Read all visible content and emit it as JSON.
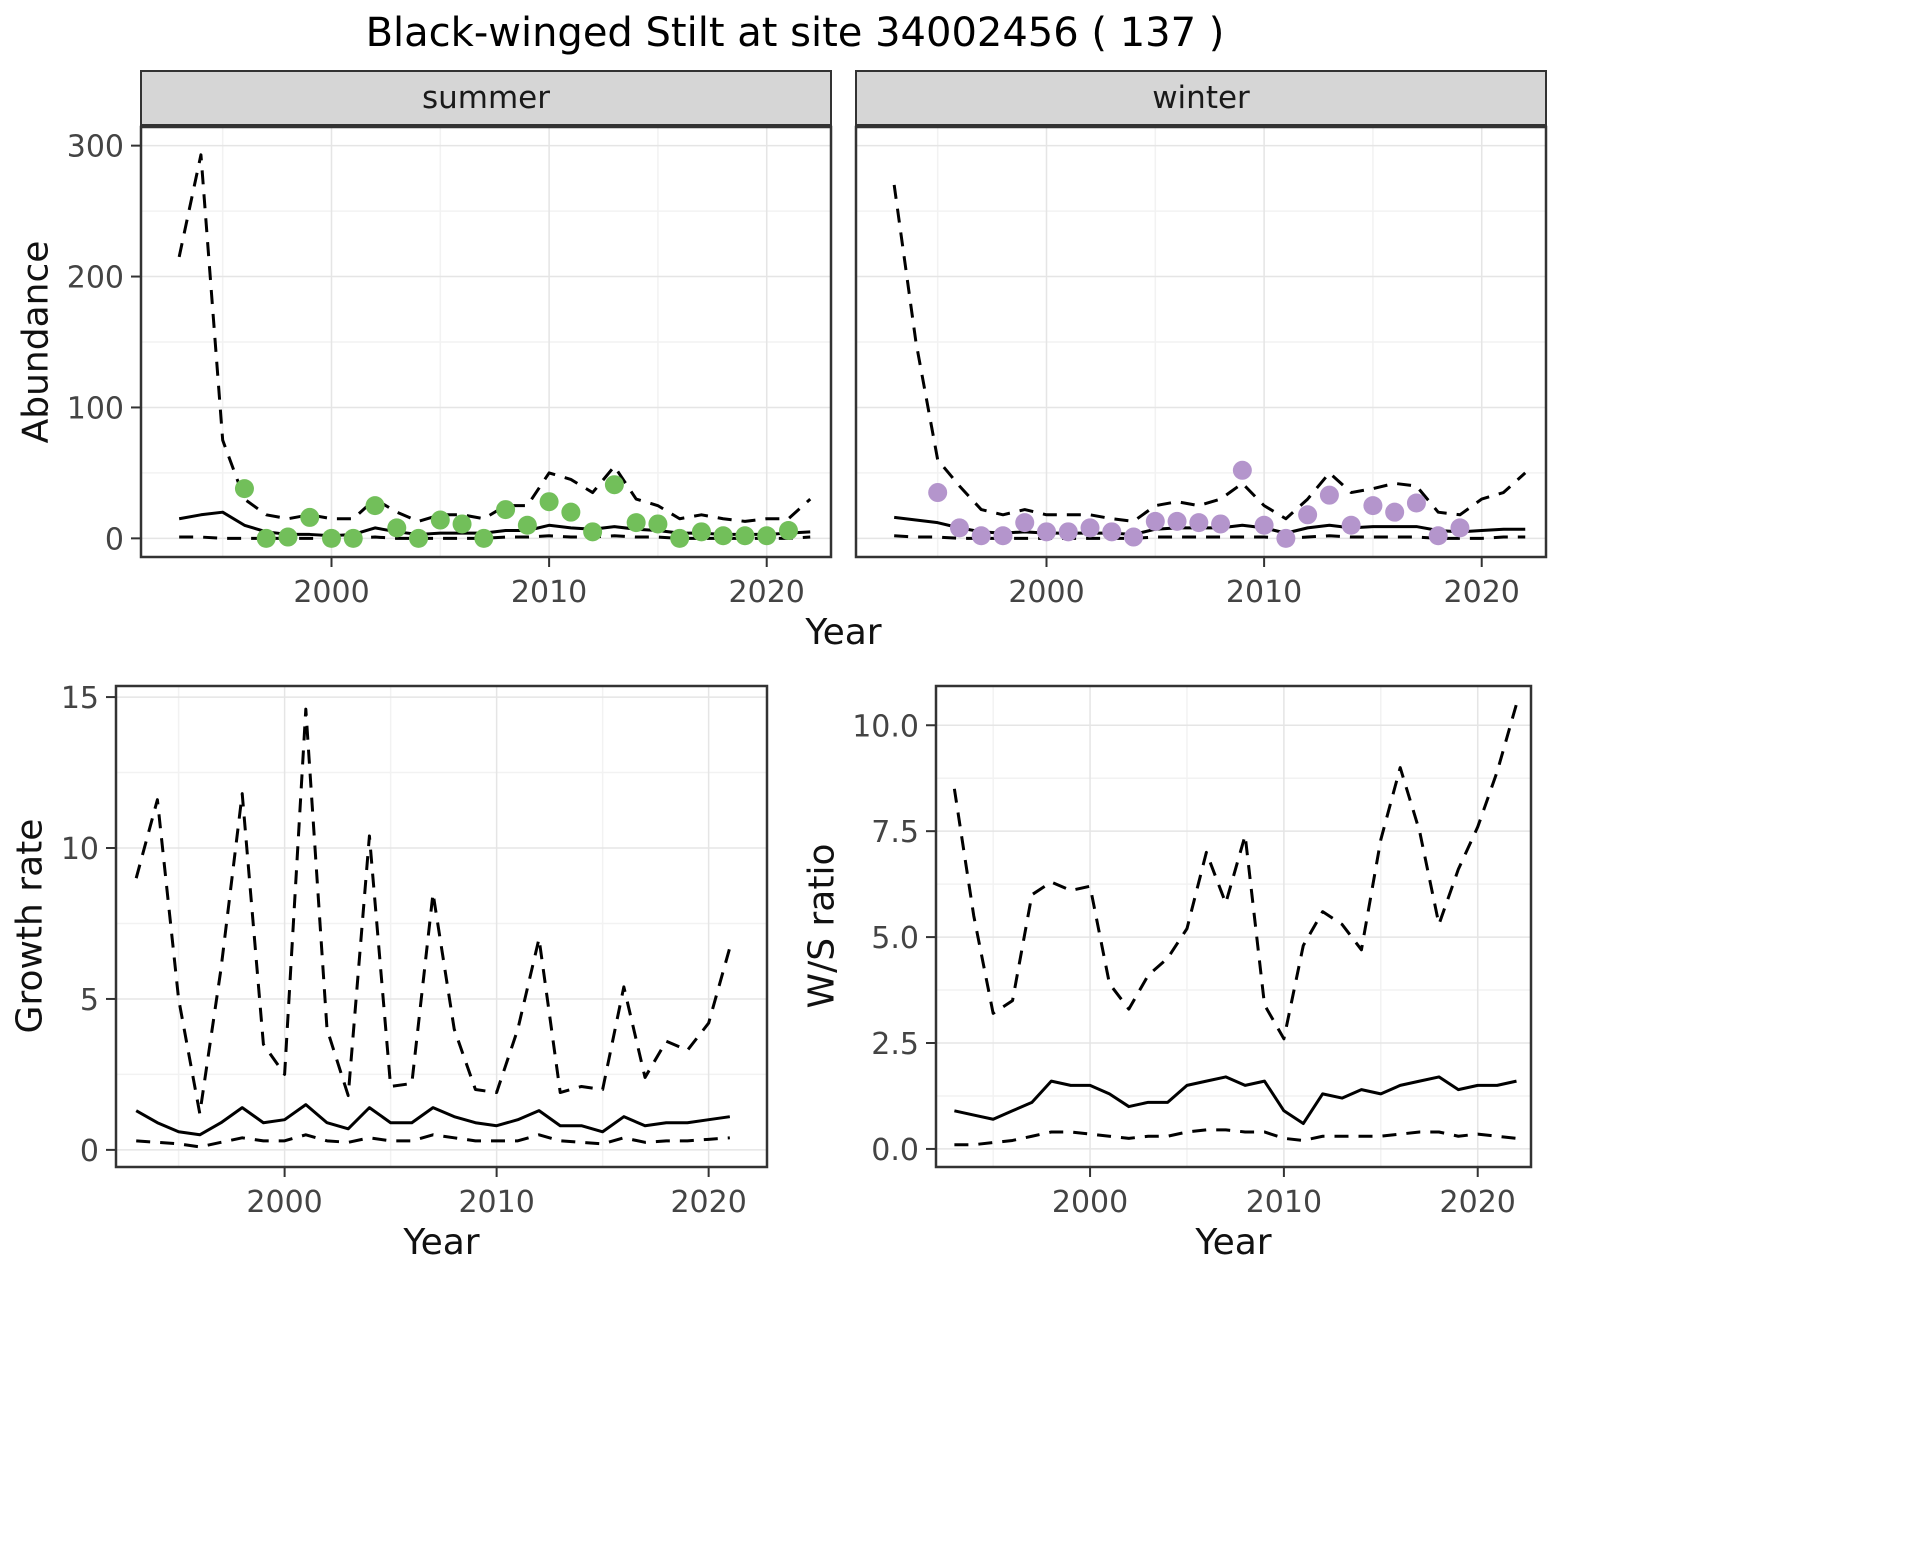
{
  "title": "Black-winged Stilt at site 34002456 ( 137 )",
  "facets": {
    "summer": "summer",
    "winter": "winter"
  },
  "axes": {
    "abundance_ylabel": "Abundance",
    "abundance_xlabel": "Year",
    "growth_ylabel": "Growth rate",
    "growth_xlabel": "Year",
    "ws_ylabel": "W/S ratio",
    "ws_xlabel": "Year"
  },
  "colors": {
    "fit_line": "#000000",
    "ci_line": "#000000",
    "summer_points": "#72bf5a",
    "winter_points": "#b495cc",
    "strip_bg": "#d6d6d6",
    "grid_major": "#e5e5e5",
    "grid_minor": "#f2f2f2",
    "panel_border": "#333333",
    "tick_text": "#444444"
  },
  "chart_data": [
    {
      "id": "summer_abundance",
      "type": "line",
      "facet": "summer",
      "xlabel": "Year",
      "ylabel": "Abundance",
      "xlim": [
        1991.2,
        2023
      ],
      "ylim": [
        -15,
        315
      ],
      "xticks": [
        2000,
        2010,
        2020
      ],
      "xticklabels": [
        "2000",
        "2010",
        "2020"
      ],
      "yticks": [
        0,
        100,
        200,
        300
      ],
      "yticklabels": [
        "0",
        "100",
        "200",
        "300"
      ],
      "show_y_labels": true,
      "grid": true,
      "legend": "none",
      "x": [
        1993,
        1994,
        1995,
        1996,
        1997,
        1998,
        1999,
        2000,
        2001,
        2002,
        2003,
        2004,
        2005,
        2006,
        2007,
        2008,
        2009,
        2010,
        2011,
        2012,
        2013,
        2014,
        2015,
        2016,
        2017,
        2018,
        2019,
        2020,
        2021,
        2022
      ],
      "series": [
        {
          "name": "upper_ci",
          "style": "dashed",
          "values": [
            215,
            293,
            75,
            30,
            18,
            15,
            18,
            15,
            15,
            30,
            20,
            13,
            18,
            18,
            15,
            25,
            25,
            50,
            45,
            35,
            55,
            30,
            25,
            15,
            18,
            15,
            13,
            15,
            15,
            30
          ]
        },
        {
          "name": "fit",
          "style": "solid",
          "values": [
            15,
            18,
            20,
            10,
            5,
            3,
            3,
            2,
            3,
            8,
            5,
            3,
            4,
            4,
            4,
            6,
            6,
            10,
            8,
            7,
            9,
            7,
            6,
            4,
            4,
            3,
            3,
            3,
            4,
            5
          ]
        },
        {
          "name": "lower_ci",
          "style": "dashed",
          "values": [
            1,
            1,
            0,
            0,
            0,
            0,
            0,
            0,
            0,
            1,
            0,
            0,
            0,
            0,
            0,
            1,
            1,
            2,
            1,
            1,
            2,
            1,
            1,
            0,
            0,
            0,
            0,
            0,
            0,
            1
          ]
        }
      ],
      "points": {
        "name": "observed_counts",
        "color_key": "summer_points",
        "x": [
          1996,
          1997,
          1998,
          1999,
          2000,
          2001,
          2002,
          2003,
          2004,
          2005,
          2006,
          2007,
          2008,
          2009,
          2010,
          2011,
          2012,
          2013,
          2014,
          2015,
          2016,
          2017,
          2018,
          2019,
          2020,
          2021
        ],
        "y": [
          38,
          0,
          1,
          16,
          0,
          0,
          25,
          8,
          0,
          14,
          11,
          0,
          22,
          10,
          28,
          20,
          5,
          41,
          12,
          11,
          0,
          5,
          2,
          2,
          2,
          6
        ]
      }
    },
    {
      "id": "winter_abundance",
      "type": "line",
      "facet": "winter",
      "xlabel": "Year",
      "ylabel": "Abundance",
      "xlim": [
        1991.2,
        2023
      ],
      "ylim": [
        -15,
        315
      ],
      "xticks": [
        2000,
        2010,
        2020
      ],
      "xticklabels": [
        "2000",
        "2010",
        "2020"
      ],
      "yticks": [
        0,
        100,
        200,
        300
      ],
      "yticklabels": [
        "0",
        "100",
        "200",
        "300"
      ],
      "show_y_labels": false,
      "grid": true,
      "legend": "none",
      "x": [
        1993,
        1994,
        1995,
        1996,
        1997,
        1998,
        1999,
        2000,
        2001,
        2002,
        2003,
        2004,
        2005,
        2006,
        2007,
        2008,
        2009,
        2010,
        2011,
        2012,
        2013,
        2014,
        2015,
        2016,
        2017,
        2018,
        2019,
        2020,
        2021,
        2022
      ],
      "series": [
        {
          "name": "upper_ci",
          "style": "dashed",
          "values": [
            270,
            150,
            60,
            40,
            22,
            18,
            22,
            18,
            18,
            18,
            15,
            13,
            25,
            28,
            25,
            30,
            42,
            25,
            15,
            30,
            50,
            35,
            38,
            42,
            40,
            20,
            18,
            30,
            35,
            50
          ]
        },
        {
          "name": "fit",
          "style": "solid",
          "values": [
            16,
            14,
            12,
            8,
            5,
            4,
            5,
            4,
            4,
            4,
            4,
            3,
            7,
            8,
            8,
            8,
            10,
            8,
            4,
            8,
            10,
            8,
            9,
            9,
            9,
            6,
            5,
            6,
            7,
            7
          ]
        },
        {
          "name": "lower_ci",
          "style": "dashed",
          "values": [
            2,
            1,
            1,
            0,
            0,
            0,
            0,
            0,
            0,
            0,
            0,
            0,
            1,
            1,
            1,
            1,
            1,
            1,
            0,
            1,
            2,
            1,
            1,
            1,
            1,
            0,
            0,
            0,
            1,
            1
          ]
        }
      ],
      "points": {
        "name": "observed_counts",
        "color_key": "winter_points",
        "x": [
          1995,
          1996,
          1997,
          1998,
          1999,
          2000,
          2001,
          2002,
          2003,
          2004,
          2005,
          2006,
          2007,
          2008,
          2009,
          2010,
          2011,
          2012,
          2013,
          2014,
          2015,
          2016,
          2017,
          2018,
          2019
        ],
        "y": [
          35,
          8,
          2,
          2,
          12,
          5,
          5,
          8,
          5,
          1,
          13,
          13,
          12,
          11,
          52,
          10,
          0,
          18,
          33,
          10,
          25,
          20,
          27,
          2,
          8
        ]
      }
    },
    {
      "id": "growth_rate",
      "type": "line",
      "xlabel": "Year",
      "ylabel": "Growth rate",
      "xlim": [
        1992,
        2022.8
      ],
      "ylim": [
        -0.6,
        15.4
      ],
      "xticks": [
        2000,
        2010,
        2020
      ],
      "xticklabels": [
        "2000",
        "2010",
        "2020"
      ],
      "yticks": [
        0,
        5,
        10,
        15
      ],
      "yticklabels": [
        "0",
        "5",
        "10",
        "15"
      ],
      "show_y_labels": true,
      "grid": true,
      "legend": "none",
      "x": [
        1993,
        1994,
        1995,
        1996,
        1997,
        1998,
        1999,
        2000,
        2001,
        2002,
        2003,
        2004,
        2005,
        2006,
        2007,
        2008,
        2009,
        2010,
        2011,
        2012,
        2013,
        2014,
        2015,
        2016,
        2017,
        2018,
        2019,
        2020,
        2021
      ],
      "series": [
        {
          "name": "upper_ci",
          "style": "dashed",
          "values": [
            9.0,
            11.6,
            5.0,
            1.2,
            6.0,
            11.8,
            3.5,
            2.5,
            14.6,
            4.0,
            1.8,
            10.4,
            2.1,
            2.2,
            8.5,
            4.0,
            2.0,
            1.9,
            4.0,
            7.0,
            1.9,
            2.1,
            2.0,
            5.4,
            2.4,
            3.6,
            3.3,
            4.2,
            6.7
          ]
        },
        {
          "name": "fit",
          "style": "solid",
          "values": [
            1.3,
            0.9,
            0.6,
            0.5,
            0.9,
            1.4,
            0.9,
            1.0,
            1.5,
            0.9,
            0.7,
            1.4,
            0.9,
            0.9,
            1.4,
            1.1,
            0.9,
            0.8,
            1.0,
            1.3,
            0.8,
            0.8,
            0.6,
            1.1,
            0.8,
            0.9,
            0.9,
            1.0,
            1.1
          ]
        },
        {
          "name": "lower_ci",
          "style": "dashed",
          "values": [
            0.3,
            0.25,
            0.2,
            0.1,
            0.25,
            0.4,
            0.3,
            0.3,
            0.5,
            0.3,
            0.25,
            0.4,
            0.3,
            0.3,
            0.5,
            0.4,
            0.3,
            0.3,
            0.3,
            0.5,
            0.3,
            0.25,
            0.2,
            0.4,
            0.25,
            0.3,
            0.3,
            0.35,
            0.4
          ]
        }
      ]
    },
    {
      "id": "ws_ratio",
      "type": "line",
      "xlabel": "Year",
      "ylabel": "W/S ratio",
      "xlim": [
        1992,
        2022.8
      ],
      "ylim": [
        -0.45,
        10.95
      ],
      "xticks": [
        2000,
        2010,
        2020
      ],
      "xticklabels": [
        "2000",
        "2010",
        "2020"
      ],
      "yticks": [
        0,
        2.5,
        5,
        7.5,
        10
      ],
      "yticklabels": [
        "0.0",
        "2.5",
        "5.0",
        "7.5",
        "10.0"
      ],
      "show_y_labels": true,
      "grid": true,
      "legend": "none",
      "x": [
        1993,
        1994,
        1995,
        1996,
        1997,
        1998,
        1999,
        2000,
        2001,
        2002,
        2003,
        2004,
        2005,
        2006,
        2007,
        2008,
        2009,
        2010,
        2011,
        2012,
        2013,
        2014,
        2015,
        2016,
        2017,
        2018,
        2019,
        2020,
        2021,
        2022
      ],
      "series": [
        {
          "name": "upper_ci",
          "style": "dashed",
          "values": [
            8.5,
            5.5,
            3.2,
            3.5,
            6.0,
            6.3,
            6.1,
            6.2,
            3.9,
            3.3,
            4.1,
            4.5,
            5.2,
            7.0,
            5.8,
            7.4,
            3.4,
            2.6,
            4.8,
            5.6,
            5.3,
            4.7,
            7.3,
            9.0,
            7.5,
            5.3,
            6.6,
            7.6,
            8.9,
            10.5
          ]
        },
        {
          "name": "fit",
          "style": "solid",
          "values": [
            0.9,
            0.8,
            0.7,
            0.9,
            1.1,
            1.6,
            1.5,
            1.5,
            1.3,
            1.0,
            1.1,
            1.1,
            1.5,
            1.6,
            1.7,
            1.5,
            1.6,
            0.9,
            0.6,
            1.3,
            1.2,
            1.4,
            1.3,
            1.5,
            1.6,
            1.7,
            1.4,
            1.5,
            1.5,
            1.6
          ]
        },
        {
          "name": "lower_ci",
          "style": "dashed",
          "values": [
            0.1,
            0.1,
            0.15,
            0.2,
            0.3,
            0.4,
            0.4,
            0.35,
            0.3,
            0.25,
            0.3,
            0.3,
            0.4,
            0.45,
            0.45,
            0.4,
            0.4,
            0.25,
            0.2,
            0.3,
            0.3,
            0.3,
            0.3,
            0.35,
            0.4,
            0.4,
            0.3,
            0.35,
            0.3,
            0.25
          ]
        }
      ]
    }
  ]
}
